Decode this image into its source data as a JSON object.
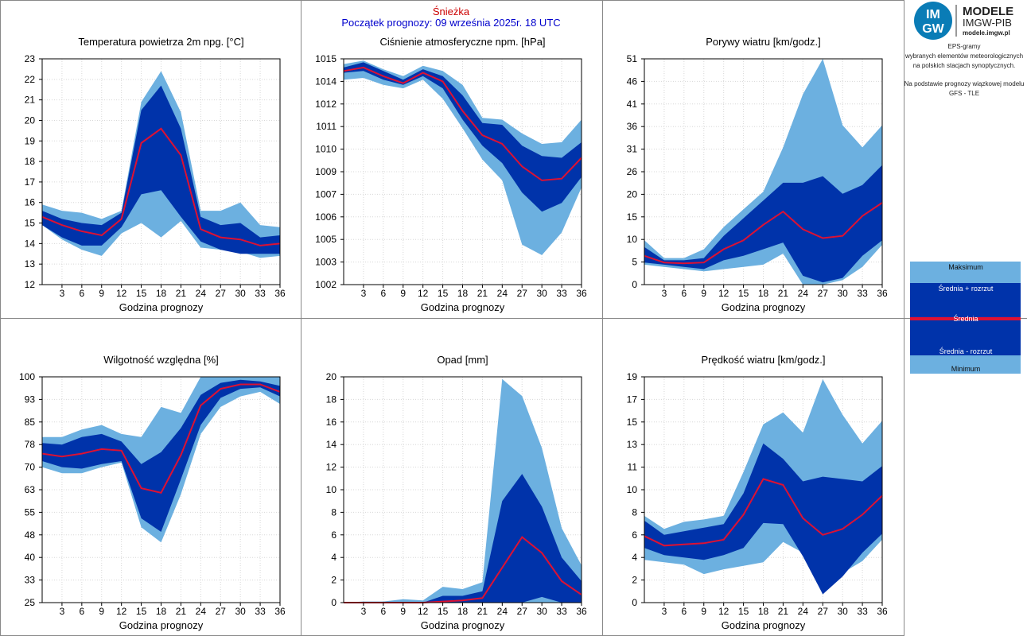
{
  "header": {
    "station": "Śnieżka",
    "forecast_start": "Początek prognozy: 09 września 2025r. 18 UTC",
    "station_color": "#cc0000",
    "start_color": "#0000cc"
  },
  "logo": {
    "badge_text_top": "IM",
    "badge_text_bottom": "GW",
    "line1": "MODELE",
    "line2": "IMGW-PIB",
    "line3": "modele.imgw.pl"
  },
  "info": {
    "lines": [
      "EPS-gramy",
      "wybranych elementów meteorologicznych",
      "na polskich stacjach  synoptycznych.",
      "",
      "Na podstawie prognozy wiązkowej modelu",
      "GFS - TLE"
    ]
  },
  "legend": {
    "items": [
      "Maksimum",
      "Średnia + rozrzut",
      "Średnia",
      "Średnia - rozrzut",
      "Minimum"
    ]
  },
  "colors": {
    "envelope": "#6cb0e0",
    "spread": "#0033aa",
    "mean": "#dd1133",
    "grid": "#d8d8d8",
    "frame": "#888888"
  },
  "chart_data": [
    {
      "type": "area",
      "title": "Temperatura powietrza 2m npg. [°C]",
      "xlabel": "Godzina prognozy",
      "ylabel": "",
      "ylim": [
        12,
        23
      ],
      "ytick_labels": [
        "12",
        "13",
        "14",
        "15",
        "16",
        "17",
        "18",
        "19",
        "20",
        "21",
        "22",
        "23"
      ],
      "x": [
        0,
        3,
        6,
        9,
        12,
        15,
        18,
        21,
        24,
        27,
        30,
        33,
        36
      ],
      "xtick_labels": [
        "3",
        "6",
        "9",
        "12",
        "15",
        "18",
        "21",
        "24",
        "27",
        "30",
        "33",
        "36"
      ],
      "series": [
        {
          "role": "max",
          "values": [
            15.9,
            15.6,
            15.5,
            15.2,
            15.6,
            20.9,
            22.4,
            20.4,
            15.6,
            15.6,
            16.0,
            14.9,
            14.8
          ]
        },
        {
          "role": "upper",
          "values": [
            15.6,
            15.2,
            15.0,
            14.9,
            15.5,
            20.5,
            21.7,
            19.6,
            15.3,
            14.9,
            15.0,
            14.3,
            14.4
          ]
        },
        {
          "role": "mean",
          "values": [
            15.3,
            14.9,
            14.6,
            14.4,
            15.2,
            18.9,
            19.6,
            18.3,
            14.7,
            14.3,
            14.2,
            13.9,
            14.0
          ]
        },
        {
          "role": "lower",
          "values": [
            14.9,
            14.3,
            13.9,
            13.9,
            14.8,
            16.4,
            16.6,
            15.3,
            14.1,
            13.7,
            13.5,
            13.5,
            13.5
          ]
        },
        {
          "role": "min",
          "values": [
            14.9,
            14.2,
            13.7,
            13.4,
            14.5,
            15.0,
            14.3,
            15.1,
            13.8,
            13.7,
            13.6,
            13.3,
            13.4
          ]
        }
      ]
    },
    {
      "type": "area",
      "title": "Ciśnienie atmosferyczne npm. [hPa]",
      "xlabel": "Godzina prognozy",
      "ylabel": "",
      "ylim": [
        1002,
        1015
      ],
      "ytick_labels": [
        "1002",
        "1003",
        "1005",
        "1006",
        "1007",
        "1009",
        "1010",
        "1011",
        "1012",
        "1014",
        "1015"
      ],
      "x": [
        0,
        3,
        6,
        9,
        12,
        15,
        18,
        21,
        24,
        27,
        30,
        33,
        36
      ],
      "xtick_labels": [
        "3",
        "6",
        "9",
        "12",
        "15",
        "18",
        "21",
        "24",
        "27",
        "30",
        "33",
        "36"
      ],
      "series": [
        {
          "role": "max",
          "values": [
            1014.7,
            1014.9,
            1014.4,
            1014.0,
            1014.6,
            1014.3,
            1013.5,
            1011.6,
            1011.5,
            1010.7,
            1010.1,
            1010.2,
            1011.5
          ]
        },
        {
          "role": "upper",
          "values": [
            1014.5,
            1014.8,
            1014.3,
            1013.8,
            1014.4,
            1014.0,
            1012.9,
            1011.3,
            1011.2,
            1010.0,
            1009.4,
            1009.3,
            1010.2
          ]
        },
        {
          "role": "mean",
          "values": [
            1014.3,
            1014.5,
            1014.0,
            1013.6,
            1014.2,
            1013.7,
            1012.0,
            1010.6,
            1010.1,
            1008.8,
            1008.0,
            1008.1,
            1009.3
          ]
        },
        {
          "role": "lower",
          "values": [
            1014.2,
            1014.3,
            1013.8,
            1013.5,
            1014.0,
            1013.3,
            1011.5,
            1010.0,
            1009.0,
            1007.3,
            1006.2,
            1006.7,
            1008.2
          ]
        },
        {
          "role": "min",
          "values": [
            1013.8,
            1013.9,
            1013.5,
            1013.3,
            1013.8,
            1012.7,
            1011.0,
            1009.2,
            1008.0,
            1004.3,
            1003.7,
            1005.0,
            1007.6
          ]
        }
      ]
    },
    {
      "type": "area",
      "title": "Porywy wiatru [km/godz.]",
      "xlabel": "Godzina prognozy",
      "ylabel": "",
      "ylim": [
        0,
        51
      ],
      "ytick_labels": [
        "0",
        "5",
        "10",
        "15",
        "20",
        "26",
        "31",
        "36",
        "41",
        "46",
        "51"
      ],
      "x": [
        0,
        3,
        6,
        9,
        12,
        15,
        18,
        21,
        24,
        27,
        30,
        33,
        36
      ],
      "xtick_labels": [
        "3",
        "6",
        "9",
        "12",
        "15",
        "18",
        "21",
        "24",
        "27",
        "30",
        "33",
        "36"
      ],
      "series": [
        {
          "role": "max",
          "values": [
            10.0,
            6.0,
            6.0,
            8.0,
            13.0,
            17.0,
            21.0,
            31.0,
            43.0,
            51.0,
            36.0,
            31.0,
            36.0
          ]
        },
        {
          "role": "upper",
          "values": [
            8.5,
            5.5,
            5.5,
            6.0,
            11.0,
            15.0,
            19.0,
            23.0,
            23.0,
            24.5,
            20.5,
            22.5,
            27.0
          ]
        },
        {
          "role": "mean",
          "values": [
            6.5,
            5.0,
            4.8,
            5.0,
            8.0,
            10.0,
            13.5,
            16.5,
            12.5,
            10.5,
            11.0,
            15.5,
            18.5
          ]
        },
        {
          "role": "lower",
          "values": [
            5.0,
            4.5,
            4.0,
            3.5,
            5.5,
            6.5,
            8.0,
            9.5,
            2.0,
            0.5,
            1.5,
            6.5,
            10.0
          ]
        },
        {
          "role": "min",
          "values": [
            4.5,
            4.0,
            3.5,
            3.0,
            3.5,
            4.0,
            4.5,
            7.0,
            0.0,
            0.0,
            1.0,
            4.0,
            9.0
          ]
        }
      ]
    },
    {
      "type": "area",
      "title": "Wilgotność względna [%]",
      "xlabel": "Godzina prognozy",
      "ylabel": "",
      "ylim": [
        25,
        100
      ],
      "ytick_labels": [
        "25",
        "33",
        "40",
        "48",
        "55",
        "63",
        "70",
        "78",
        "85",
        "93",
        "100"
      ],
      "x": [
        0,
        3,
        6,
        9,
        12,
        15,
        18,
        21,
        24,
        27,
        30,
        33,
        36
      ],
      "xtick_labels": [
        "3",
        "6",
        "9",
        "12",
        "15",
        "18",
        "21",
        "24",
        "27",
        "30",
        "33",
        "36"
      ],
      "series": [
        {
          "role": "max",
          "values": [
            80.0,
            80.0,
            82.5,
            84.0,
            81.0,
            80.0,
            90.0,
            88.0,
            100.0,
            100.0,
            100.0,
            100.0,
            100.0
          ]
        },
        {
          "role": "upper",
          "values": [
            78.0,
            77.5,
            80.0,
            81.0,
            78.5,
            71.0,
            75.0,
            83.0,
            94.0,
            98.0,
            99.0,
            98.5,
            97.0
          ]
        },
        {
          "role": "mean",
          "values": [
            74.5,
            73.5,
            74.5,
            76.0,
            75.5,
            63.0,
            61.5,
            74.0,
            90.5,
            96.0,
            97.5,
            97.5,
            95.0
          ]
        },
        {
          "role": "lower",
          "values": [
            72.0,
            70.0,
            69.5,
            71.0,
            72.0,
            53.0,
            48.5,
            66.0,
            84.0,
            93.0,
            96.0,
            96.5,
            93.5
          ]
        },
        {
          "role": "min",
          "values": [
            70.0,
            68.0,
            68.0,
            70.0,
            71.5,
            50.0,
            45.0,
            61.0,
            81.0,
            90.0,
            93.5,
            95.0,
            91.0
          ]
        }
      ]
    },
    {
      "type": "area",
      "title": "Opad [mm]",
      "xlabel": "Godzina prognozy",
      "ylabel": "",
      "ylim": [
        0,
        20
      ],
      "ytick_labels": [
        "0",
        "2",
        "4",
        "6",
        "8",
        "10",
        "12",
        "14",
        "16",
        "18",
        "20"
      ],
      "x": [
        0,
        3,
        6,
        9,
        12,
        15,
        18,
        21,
        24,
        27,
        30,
        33,
        36
      ],
      "xtick_labels": [
        "3",
        "6",
        "9",
        "12",
        "15",
        "18",
        "21",
        "24",
        "27",
        "30",
        "33",
        "36"
      ],
      "series": [
        {
          "role": "max",
          "values": [
            0.0,
            0.1,
            0.1,
            0.3,
            0.2,
            1.4,
            1.2,
            1.8,
            19.8,
            18.3,
            13.7,
            6.6,
            3.3
          ]
        },
        {
          "role": "upper",
          "values": [
            0.0,
            0.0,
            0.0,
            0.0,
            0.0,
            0.6,
            0.6,
            1.0,
            9.0,
            11.4,
            8.5,
            4.0,
            1.9
          ]
        },
        {
          "role": "mean",
          "values": [
            0.0,
            0.0,
            0.0,
            0.0,
            0.0,
            0.1,
            0.2,
            0.4,
            3.1,
            5.8,
            4.4,
            1.9,
            0.7
          ]
        },
        {
          "role": "lower",
          "values": [
            0.0,
            0.0,
            0.0,
            0.0,
            0.0,
            0.0,
            0.0,
            0.0,
            0.0,
            0.0,
            0.5,
            0.0,
            0.0
          ]
        },
        {
          "role": "min",
          "values": [
            0.0,
            0.0,
            0.0,
            0.0,
            0.0,
            0.0,
            0.0,
            0.0,
            0.0,
            0.0,
            0.0,
            0.0,
            0.0
          ]
        }
      ]
    },
    {
      "type": "area",
      "title": "Prędkość wiatru [km/godz.]",
      "xlabel": "Godzina prognozy",
      "ylabel": "",
      "ylim": [
        0,
        19
      ],
      "ytick_labels": [
        "0",
        "2",
        "4",
        "6",
        "8",
        "10",
        "11",
        "13",
        "15",
        "17",
        "19"
      ],
      "x": [
        0,
        3,
        6,
        9,
        12,
        15,
        18,
        21,
        24,
        27,
        30,
        33,
        36
      ],
      "xtick_labels": [
        "3",
        "6",
        "9",
        "12",
        "15",
        "18",
        "21",
        "24",
        "27",
        "30",
        "33",
        "36"
      ],
      "series": [
        {
          "role": "max",
          "values": [
            7.3,
            6.2,
            6.8,
            7.0,
            7.3,
            11.0,
            15.0,
            16.0,
            14.3,
            18.8,
            15.8,
            13.4,
            15.3
          ]
        },
        {
          "role": "upper",
          "values": [
            6.9,
            5.7,
            6.0,
            6.3,
            6.6,
            9.2,
            13.4,
            12.1,
            10.2,
            10.6,
            10.4,
            10.2,
            11.5
          ]
        },
        {
          "role": "mean",
          "values": [
            5.6,
            4.8,
            4.9,
            5.0,
            5.3,
            7.4,
            10.4,
            9.9,
            7.1,
            5.7,
            6.2,
            7.4,
            9.0
          ]
        },
        {
          "role": "lower",
          "values": [
            4.6,
            4.0,
            3.8,
            3.6,
            4.0,
            4.6,
            6.7,
            6.6,
            3.9,
            0.7,
            2.2,
            4.2,
            5.8
          ]
        },
        {
          "role": "min",
          "values": [
            3.6,
            3.4,
            3.2,
            2.4,
            2.8,
            3.1,
            3.4,
            5.1,
            4.2,
            0.7,
            2.5,
            3.5,
            5.3
          ]
        }
      ]
    }
  ]
}
